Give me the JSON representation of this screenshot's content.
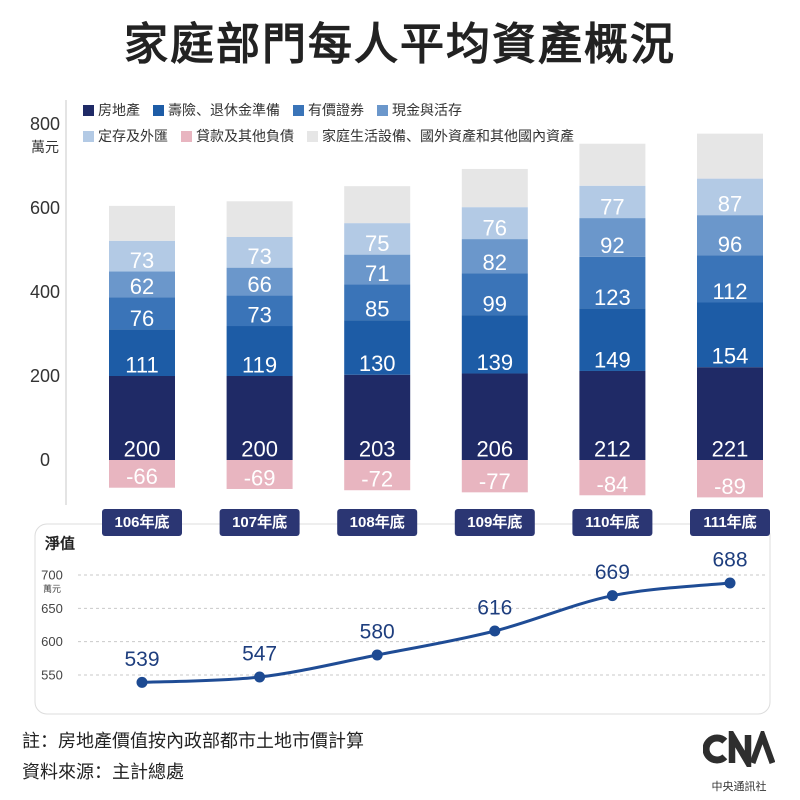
{
  "chart_data": [
    {
      "type": "bar",
      "stacked": true,
      "title": "家庭部門每人平均資產概況",
      "categories": [
        "106年底",
        "107年底",
        "108年底",
        "109年底",
        "110年底",
        "111年底"
      ],
      "yunit": "萬元",
      "yticks": [
        0,
        200,
        400,
        600,
        800
      ],
      "ylim": [
        -100,
        800
      ],
      "grid": false,
      "legend": "top-left",
      "series": [
        {
          "name": "房地產",
          "color": "#1f2a66",
          "show_labels": true,
          "values": [
            200,
            200,
            203,
            206,
            212,
            221
          ]
        },
        {
          "name": "壽險、退休金準備",
          "color": "#1d5ca6",
          "show_labels": true,
          "values": [
            111,
            119,
            130,
            139,
            149,
            154
          ]
        },
        {
          "name": "有價證券",
          "color": "#3a74b8",
          "show_labels": true,
          "values": [
            76,
            73,
            85,
            99,
            123,
            112
          ]
        },
        {
          "name": "現金與活存",
          "color": "#6b97cb",
          "show_labels": true,
          "values": [
            62,
            66,
            71,
            82,
            92,
            96
          ]
        },
        {
          "name": "定存及外匯",
          "color": "#b3cae5",
          "show_labels": true,
          "values": [
            73,
            73,
            75,
            76,
            77,
            87
          ]
        },
        {
          "name": "貸款及其他負債",
          "color": "#e8b5c0",
          "show_labels": true,
          "values": [
            -66,
            -69,
            -72,
            -77,
            -84,
            -89
          ]
        },
        {
          "name": "家庭生活設備、國外資產和其他國內資產",
          "color": "#e6e6e6",
          "show_labels": false,
          "values": [
            83,
            85,
            88,
            91,
            100,
            107
          ]
        }
      ]
    },
    {
      "type": "line",
      "title": "淨值",
      "yunit": "萬元",
      "yticks": [
        550,
        600,
        650,
        700
      ],
      "ylim": [
        530,
        710
      ],
      "grid": true,
      "values": [
        539,
        547,
        580,
        616,
        669,
        688
      ]
    }
  ],
  "notes": {
    "note": "註：房地產價值按內政部都市土地市價計算",
    "source": "資料來源：主計總處"
  },
  "logo": {
    "wordmark": "CNA",
    "org_name": "中央通訊社"
  },
  "colors": {
    "category_label_bg": "#2b3673",
    "line": "#1f4c95",
    "point": "#1d4a92",
    "point_label": "#1e3e7e",
    "axis": "#c8c8c8",
    "grid": "#c9c9c9",
    "logo": "#2e2e2e"
  }
}
